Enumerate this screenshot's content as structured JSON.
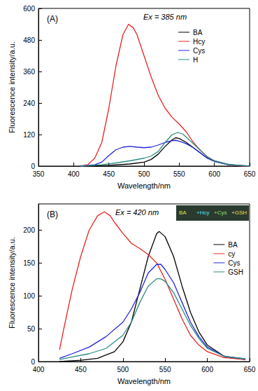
{
  "chart_data": [
    {
      "type": "line",
      "title": "(A)",
      "annotation": "Ex = 385 nm",
      "x_label": "Wavelength/nm",
      "y_label": "Fluorescence intensity/a.u.",
      "xlim": [
        350,
        650
      ],
      "xticks": [
        350,
        400,
        450,
        500,
        550,
        600,
        650
      ],
      "ylim": [
        0,
        600
      ],
      "yticks": [
        0,
        120,
        240,
        360,
        480,
        600
      ],
      "grid": false,
      "legend": "upper right",
      "series": [
        {
          "name": "BA",
          "color": "#000000",
          "x": [
            410,
            450,
            480,
            500,
            510,
            520,
            530,
            540,
            545,
            550,
            560,
            570,
            580,
            590,
            600,
            620,
            640,
            650
          ],
          "values": [
            0,
            3,
            8,
            15,
            25,
            45,
            75,
            100,
            108,
            105,
            90,
            70,
            50,
            30,
            18,
            6,
            1,
            0
          ]
        },
        {
          "name": "Hcy",
          "color": "#e8231f",
          "x": [
            410,
            420,
            430,
            440,
            450,
            460,
            470,
            478,
            485,
            490,
            500,
            510,
            520,
            530,
            540,
            550,
            560,
            570,
            580,
            590,
            600,
            620,
            640,
            650
          ],
          "values": [
            0,
            5,
            30,
            90,
            220,
            380,
            500,
            540,
            525,
            500,
            420,
            340,
            270,
            220,
            185,
            160,
            130,
            90,
            60,
            35,
            20,
            5,
            0,
            0
          ]
        },
        {
          "name": "Cys",
          "color": "#2323d8",
          "x": [
            410,
            430,
            440,
            450,
            460,
            470,
            480,
            490,
            500,
            510,
            520,
            530,
            540,
            545,
            550,
            560,
            570,
            580,
            590,
            600,
            620,
            650
          ],
          "values": [
            0,
            5,
            15,
            40,
            62,
            72,
            75,
            72,
            70,
            72,
            80,
            90,
            97,
            98,
            95,
            85,
            70,
            50,
            30,
            18,
            5,
            0
          ]
        },
        {
          "name": "H",
          "color": "#2a8c82",
          "x": [
            410,
            440,
            460,
            480,
            500,
            510,
            520,
            530,
            540,
            548,
            555,
            560,
            570,
            580,
            590,
            600,
            620,
            650
          ],
          "values": [
            0,
            5,
            12,
            20,
            30,
            38,
            55,
            90,
            120,
            128,
            122,
            110,
            85,
            60,
            35,
            20,
            6,
            0
          ]
        }
      ]
    },
    {
      "type": "line",
      "title": "(B)",
      "annotation": "Ex = 420 nm",
      "inset_labels": [
        "BA",
        "+Hcy",
        "+Cys",
        "+GSH"
      ],
      "x_label": "Wavelength/nm",
      "y_label": "Fluorescence intensity/a.u.",
      "xlim": [
        400,
        650
      ],
      "xticks": [
        400,
        450,
        500,
        550,
        600,
        650
      ],
      "ylim": [
        0,
        240
      ],
      "yticks": [
        0,
        50,
        100,
        150,
        200
      ],
      "grid": false,
      "legend": "right",
      "series": [
        {
          "name": "BA",
          "color": "#000000",
          "x": [
            425,
            450,
            470,
            490,
            500,
            510,
            520,
            530,
            540,
            543,
            550,
            560,
            570,
            580,
            590,
            600,
            620,
            645
          ],
          "values": [
            0,
            2,
            5,
            15,
            30,
            60,
            110,
            160,
            195,
            198,
            190,
            160,
            115,
            75,
            45,
            25,
            8,
            3
          ]
        },
        {
          "name": "cy",
          "color": "#e8231f",
          "x": [
            425,
            430,
            440,
            450,
            460,
            470,
            478,
            485,
            490,
            500,
            510,
            520,
            530,
            540,
            550,
            560,
            570,
            580,
            590,
            600,
            620,
            645
          ],
          "values": [
            18,
            50,
            110,
            160,
            200,
            222,
            228,
            222,
            212,
            195,
            180,
            172,
            163,
            150,
            125,
            95,
            65,
            40,
            25,
            15,
            6,
            3
          ]
        },
        {
          "name": "Cys",
          "color": "#2323d8",
          "x": [
            425,
            440,
            460,
            480,
            500,
            510,
            520,
            530,
            540,
            545,
            550,
            560,
            570,
            580,
            590,
            600,
            620,
            645
          ],
          "values": [
            5,
            12,
            22,
            38,
            60,
            80,
            105,
            135,
            148,
            148,
            140,
            120,
            90,
            60,
            38,
            22,
            8,
            4
          ]
        },
        {
          "name": "GSH",
          "color": "#2a8c82",
          "x": [
            425,
            440,
            460,
            480,
            500,
            510,
            520,
            530,
            540,
            545,
            550,
            560,
            570,
            580,
            590,
            600,
            620,
            645
          ],
          "values": [
            3,
            7,
            12,
            20,
            40,
            60,
            90,
            115,
            126,
            126,
            122,
            105,
            80,
            55,
            35,
            20,
            8,
            4
          ]
        }
      ]
    }
  ]
}
